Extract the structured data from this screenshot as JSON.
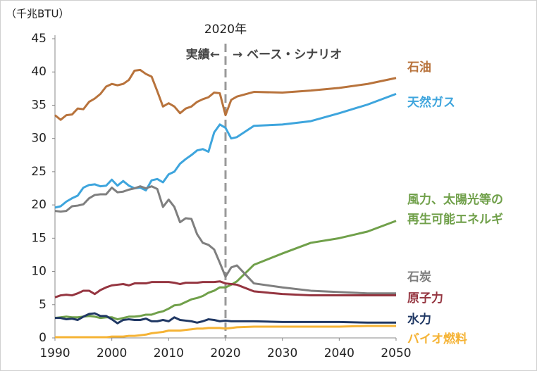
{
  "chart_data": {
    "type": "line",
    "unit_label": "（千兆BTU）",
    "annotations": [
      "2020年",
      "実績←",
      "→ ベース・シナリオ"
    ],
    "vline": 2020,
    "x": [
      1990,
      1991,
      1992,
      1993,
      1994,
      1995,
      1996,
      1997,
      1998,
      1999,
      2000,
      2001,
      2002,
      2003,
      2004,
      2005,
      2006,
      2007,
      2008,
      2009,
      2010,
      2011,
      2012,
      2013,
      2014,
      2015,
      2016,
      2017,
      2018,
      2019,
      2020,
      2021,
      2022,
      2025,
      2030,
      2035,
      2040,
      2045,
      2050
    ],
    "xlim": [
      1990,
      2050
    ],
    "xticks": [
      1990,
      2000,
      2010,
      2020,
      2030,
      2040,
      2050
    ],
    "ylim": [
      0,
      45
    ],
    "yticks": [
      0,
      5,
      10,
      15,
      20,
      25,
      30,
      35,
      40,
      45
    ],
    "grid": false,
    "series": [
      {
        "name": "石油",
        "color": "#b8733c",
        "values": [
          33.5,
          32.8,
          33.5,
          33.6,
          34.5,
          34.4,
          35.5,
          36.0,
          36.7,
          37.8,
          38.2,
          38.0,
          38.2,
          38.8,
          40.2,
          40.3,
          39.7,
          39.3,
          37.1,
          34.8,
          35.3,
          34.8,
          33.8,
          34.5,
          34.8,
          35.5,
          35.9,
          36.2,
          36.9,
          36.8,
          33.5,
          35.8,
          36.3,
          37.0,
          36.9,
          37.2,
          37.6,
          38.2,
          39.1
        ]
      },
      {
        "name": "天然ガス",
        "color": "#3ea5dd",
        "values": [
          19.6,
          19.8,
          20.5,
          21.0,
          21.4,
          22.6,
          23.0,
          23.1,
          22.8,
          22.9,
          23.8,
          22.9,
          23.6,
          22.9,
          22.5,
          22.6,
          22.2,
          23.7,
          23.9,
          23.4,
          24.6,
          25.0,
          26.2,
          26.9,
          27.5,
          28.2,
          28.4,
          28.0,
          30.9,
          32.1,
          31.6,
          30.0,
          30.2,
          31.9,
          32.1,
          32.6,
          33.8,
          35.1,
          36.7
        ]
      },
      {
        "name": "風力、太陽光等の\n再生可能エネルギ",
        "color": "#70a04a",
        "values": [
          3.0,
          3.1,
          3.2,
          3.1,
          3.1,
          3.2,
          3.3,
          3.2,
          3.0,
          3.1,
          3.1,
          2.8,
          3.0,
          3.2,
          3.2,
          3.3,
          3.5,
          3.5,
          3.8,
          4.0,
          4.4,
          4.9,
          5.0,
          5.4,
          5.8,
          6.0,
          6.3,
          6.8,
          7.1,
          7.6,
          7.6,
          8.0,
          8.5,
          11.0,
          12.7,
          14.3,
          15.0,
          16.0,
          17.6
        ]
      },
      {
        "name": "石炭",
        "color": "#7f7f7f",
        "values": [
          19.1,
          19.0,
          19.1,
          19.8,
          19.9,
          20.1,
          21.0,
          21.5,
          21.6,
          21.6,
          22.6,
          21.9,
          22.0,
          22.3,
          22.5,
          22.8,
          22.5,
          22.8,
          22.4,
          19.7,
          20.8,
          19.7,
          17.4,
          18.0,
          17.9,
          15.6,
          14.3,
          14.0,
          13.3,
          11.3,
          9.2,
          10.6,
          10.9,
          8.2,
          7.6,
          7.1,
          6.9,
          6.7,
          6.7
        ]
      },
      {
        "name": "原子力",
        "color": "#953540",
        "values": [
          6.1,
          6.4,
          6.5,
          6.4,
          6.7,
          7.1,
          7.1,
          6.6,
          7.2,
          7.6,
          7.9,
          8.0,
          8.1,
          7.9,
          8.2,
          8.2,
          8.2,
          8.4,
          8.4,
          8.4,
          8.4,
          8.3,
          8.1,
          8.3,
          8.3,
          8.3,
          8.4,
          8.4,
          8.4,
          8.5,
          8.2,
          8.1,
          8.0,
          7.0,
          6.6,
          6.4,
          6.4,
          6.4,
          6.4
        ]
      },
      {
        "name": "水力",
        "color": "#203864",
        "values": [
          3.0,
          3.0,
          2.8,
          2.9,
          2.7,
          3.2,
          3.6,
          3.7,
          3.3,
          3.3,
          2.8,
          2.2,
          2.7,
          2.8,
          2.7,
          2.7,
          2.9,
          2.5,
          2.5,
          2.7,
          2.5,
          3.1,
          2.7,
          2.6,
          2.5,
          2.3,
          2.5,
          2.8,
          2.7,
          2.5,
          2.6,
          2.5,
          2.5,
          2.5,
          2.4,
          2.4,
          2.4,
          2.3,
          2.3
        ]
      },
      {
        "name": "バイオ燃料",
        "color": "#f5b335",
        "values": [
          0.1,
          0.1,
          0.1,
          0.1,
          0.1,
          0.1,
          0.1,
          0.1,
          0.1,
          0.1,
          0.2,
          0.2,
          0.2,
          0.3,
          0.3,
          0.4,
          0.5,
          0.7,
          0.8,
          0.9,
          1.1,
          1.1,
          1.1,
          1.2,
          1.3,
          1.4,
          1.4,
          1.5,
          1.5,
          1.5,
          1.4,
          1.5,
          1.6,
          1.7,
          1.7,
          1.7,
          1.7,
          1.8,
          1.8
        ]
      }
    ]
  }
}
